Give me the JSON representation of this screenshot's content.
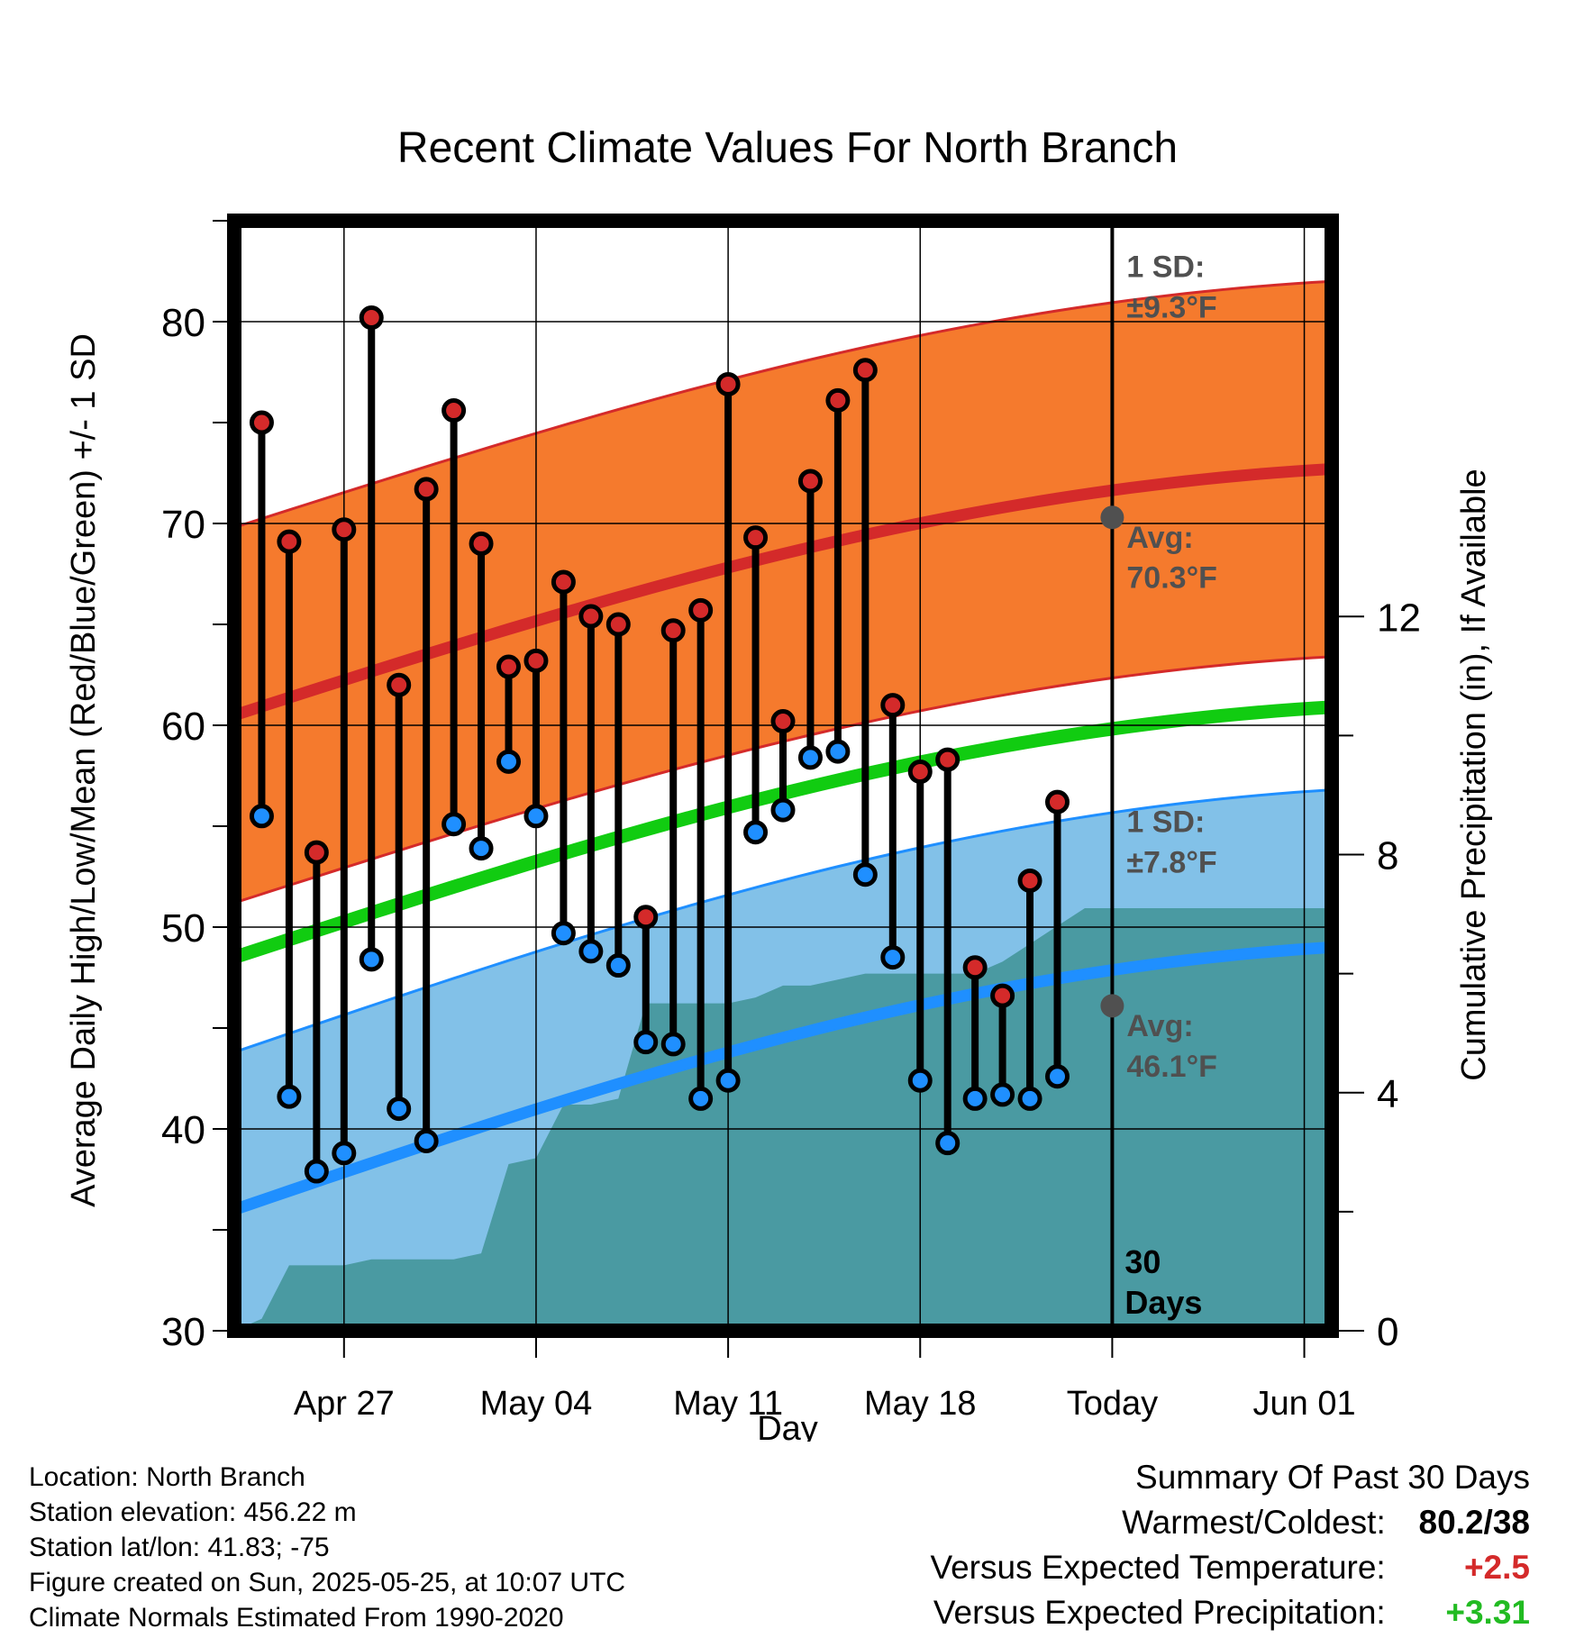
{
  "title": "Recent Climate Values For North Branch",
  "chart_data": {
    "type": "line",
    "title": "Recent Climate Values For North Branch",
    "xlabel": "Day",
    "ylabel": "Average Daily High/Low/Mean (Red/Blue/Green) +/- 1 SD",
    "y2label": "Cumulative Precipitation (in), If Available",
    "ylim": [
      30,
      85
    ],
    "y2lim": [
      0,
      18.65
    ],
    "yticks": [
      "30",
      "40",
      "50",
      "60",
      "70",
      "80"
    ],
    "y2ticks": [
      "0",
      "4",
      "8",
      "12"
    ],
    "xlim": [
      "2025-04-23",
      "2025-06-02"
    ],
    "xticks": [
      {
        "date": "2025-04-27",
        "label": "Apr 27"
      },
      {
        "date": "2025-05-04",
        "label": "May 04"
      },
      {
        "date": "2025-05-11",
        "label": "May 11"
      },
      {
        "date": "2025-05-18",
        "label": "May 18"
      },
      {
        "date": "2025-05-25",
        "label": "Today"
      },
      {
        "date": "2025-06-01",
        "label": "Jun 01"
      }
    ],
    "grid": true,
    "today": "2025-05-25",
    "today_label": [
      "30",
      "Days"
    ],
    "normals": {
      "dates": [
        "2025-04-23",
        "2025-06-02"
      ],
      "high_avg": [
        60.5,
        72.7
      ],
      "high_sd": 9.3,
      "low_avg": [
        36.0,
        49.0
      ],
      "low_sd": 7.8,
      "mean_avg": [
        48.5,
        60.9
      ]
    },
    "normal_labels": {
      "high_sd": [
        "1 SD:",
        "±9.3°F"
      ],
      "high_avg": [
        "Avg:",
        "70.3°F"
      ],
      "low_sd": [
        "1 SD:",
        "±7.8°F"
      ],
      "low_avg": [
        "Avg:",
        "46.1°F"
      ]
    },
    "today_markers": {
      "high": 70.3,
      "low": 46.1
    },
    "series": [
      {
        "name": "High",
        "color": "#d42a2a",
        "dates": [
          "2025-04-24",
          "2025-04-25",
          "2025-04-26",
          "2025-04-27",
          "2025-04-28",
          "2025-04-29",
          "2025-04-30",
          "2025-05-01",
          "2025-05-02",
          "2025-05-03",
          "2025-05-04",
          "2025-05-05",
          "2025-05-06",
          "2025-05-07",
          "2025-05-08",
          "2025-05-09",
          "2025-05-10",
          "2025-05-11",
          "2025-05-12",
          "2025-05-13",
          "2025-05-14",
          "2025-05-15",
          "2025-05-16",
          "2025-05-17",
          "2025-05-18",
          "2025-05-19",
          "2025-05-20",
          "2025-05-21",
          "2025-05-22",
          "2025-05-23",
          "2025-05-24"
        ],
        "values": [
          75.0,
          69.1,
          53.7,
          69.7,
          80.2,
          62.0,
          71.7,
          75.6,
          69.0,
          62.9,
          63.2,
          67.1,
          65.4,
          65.0,
          50.5,
          64.7,
          65.7,
          76.9,
          69.3,
          60.2,
          72.1,
          76.1,
          77.6,
          61.0,
          57.7,
          58.3,
          48.0,
          46.6,
          52.3,
          56.2,
          null
        ]
      },
      {
        "name": "Low",
        "color": "#1f8fff",
        "dates": [
          "2025-04-24",
          "2025-04-25",
          "2025-04-26",
          "2025-04-27",
          "2025-04-28",
          "2025-04-29",
          "2025-04-30",
          "2025-05-01",
          "2025-05-02",
          "2025-05-03",
          "2025-05-04",
          "2025-05-05",
          "2025-05-06",
          "2025-05-07",
          "2025-05-08",
          "2025-05-09",
          "2025-05-10",
          "2025-05-11",
          "2025-05-12",
          "2025-05-13",
          "2025-05-14",
          "2025-05-15",
          "2025-05-16",
          "2025-05-17",
          "2025-05-18",
          "2025-05-19",
          "2025-05-20",
          "2025-05-21",
          "2025-05-22",
          "2025-05-23",
          "2025-05-24"
        ],
        "values": [
          55.5,
          41.6,
          37.9,
          38.8,
          48.4,
          41.0,
          39.4,
          55.1,
          53.9,
          58.2,
          55.5,
          49.7,
          48.8,
          48.1,
          44.3,
          44.2,
          41.5,
          42.4,
          54.7,
          55.8,
          58.4,
          58.7,
          52.6,
          48.5,
          42.4,
          39.3,
          41.5,
          41.7,
          41.5,
          42.6,
          null
        ]
      },
      {
        "name": "Cumulative Precipitation",
        "color": "#4a9aa2",
        "dates": [
          "2025-04-23",
          "2025-04-24",
          "2025-04-25",
          "2025-04-26",
          "2025-04-27",
          "2025-04-28",
          "2025-04-29",
          "2025-04-30",
          "2025-05-01",
          "2025-05-02",
          "2025-05-03",
          "2025-05-04",
          "2025-05-05",
          "2025-05-06",
          "2025-05-07",
          "2025-05-08",
          "2025-05-09",
          "2025-05-10",
          "2025-05-11",
          "2025-05-12",
          "2025-05-13",
          "2025-05-14",
          "2025-05-15",
          "2025-05-16",
          "2025-05-17",
          "2025-05-18",
          "2025-05-19",
          "2025-05-20",
          "2025-05-21",
          "2025-05-22",
          "2025-05-23",
          "2025-05-24",
          "2025-05-25",
          "2025-06-02"
        ],
        "values": [
          0.0,
          0.2,
          1.1,
          1.1,
          1.1,
          1.2,
          1.2,
          1.2,
          1.2,
          1.3,
          2.8,
          2.9,
          3.8,
          3.8,
          3.9,
          5.5,
          5.5,
          5.5,
          5.5,
          5.6,
          5.8,
          5.8,
          5.9,
          6.0,
          6.0,
          6.0,
          6.0,
          6.0,
          6.2,
          6.5,
          6.8,
          7.1,
          7.1,
          7.1
        ]
      }
    ]
  },
  "footer": {
    "location": "Location: North Branch",
    "elevation": "Station elevation: 456.22 m",
    "latlon": "Station lat/lon: 41.83; -75",
    "created": "Figure created on Sun, 2025-05-25, at 10:07 UTC",
    "normals": "Climate Normals Estimated From 1990-2020"
  },
  "summary": {
    "title": "Summary Of Past 30 Days",
    "warmest_label": "Warmest/Coldest:",
    "warmest_value": "80.2/38",
    "temp_label": "Versus Expected Temperature:",
    "temp_value": "+2.5",
    "temp_color": "#d42a2a",
    "precip_label": "Versus Expected Precipitation:",
    "precip_value": "+3.31",
    "precip_color": "#22bb22"
  }
}
